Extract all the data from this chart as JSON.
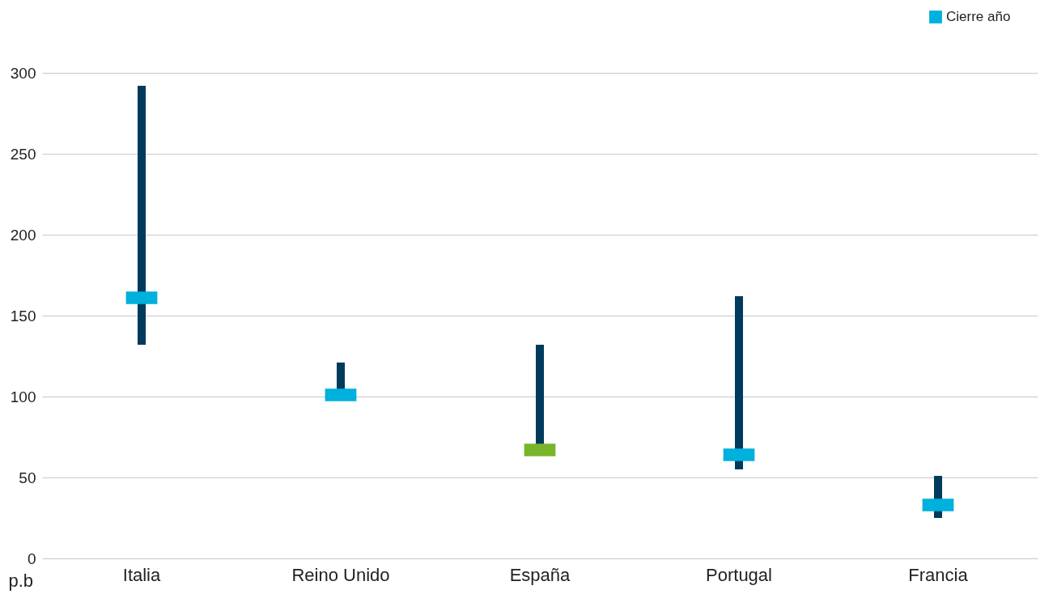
{
  "chart_data": {
    "type": "bar",
    "categories": [
      "Italia",
      "Reino Unido",
      "España",
      "Portugal",
      "Francia"
    ],
    "ylabel": "p.b",
    "ylim": [
      0,
      300
    ],
    "yticks": [
      0,
      50,
      100,
      150,
      200,
      250,
      300
    ],
    "grid": "y",
    "legend": "top right",
    "series": [
      {
        "color": "#003a5c",
        "base": [
          132,
          99,
          64,
          55,
          25
        ],
        "values": [
          160,
          22,
          68,
          107,
          26
        ]
      },
      {
        "type": "scatter",
        "name": "Cierre año",
        "color": "#00b0dd",
        "colors": [
          "#00b0dd",
          "#00b0dd",
          "#78b52a",
          "#00b0dd",
          "#00b0dd"
        ],
        "marker": "square",
        "values": [
          161,
          101,
          67,
          64,
          33
        ]
      }
    ]
  }
}
